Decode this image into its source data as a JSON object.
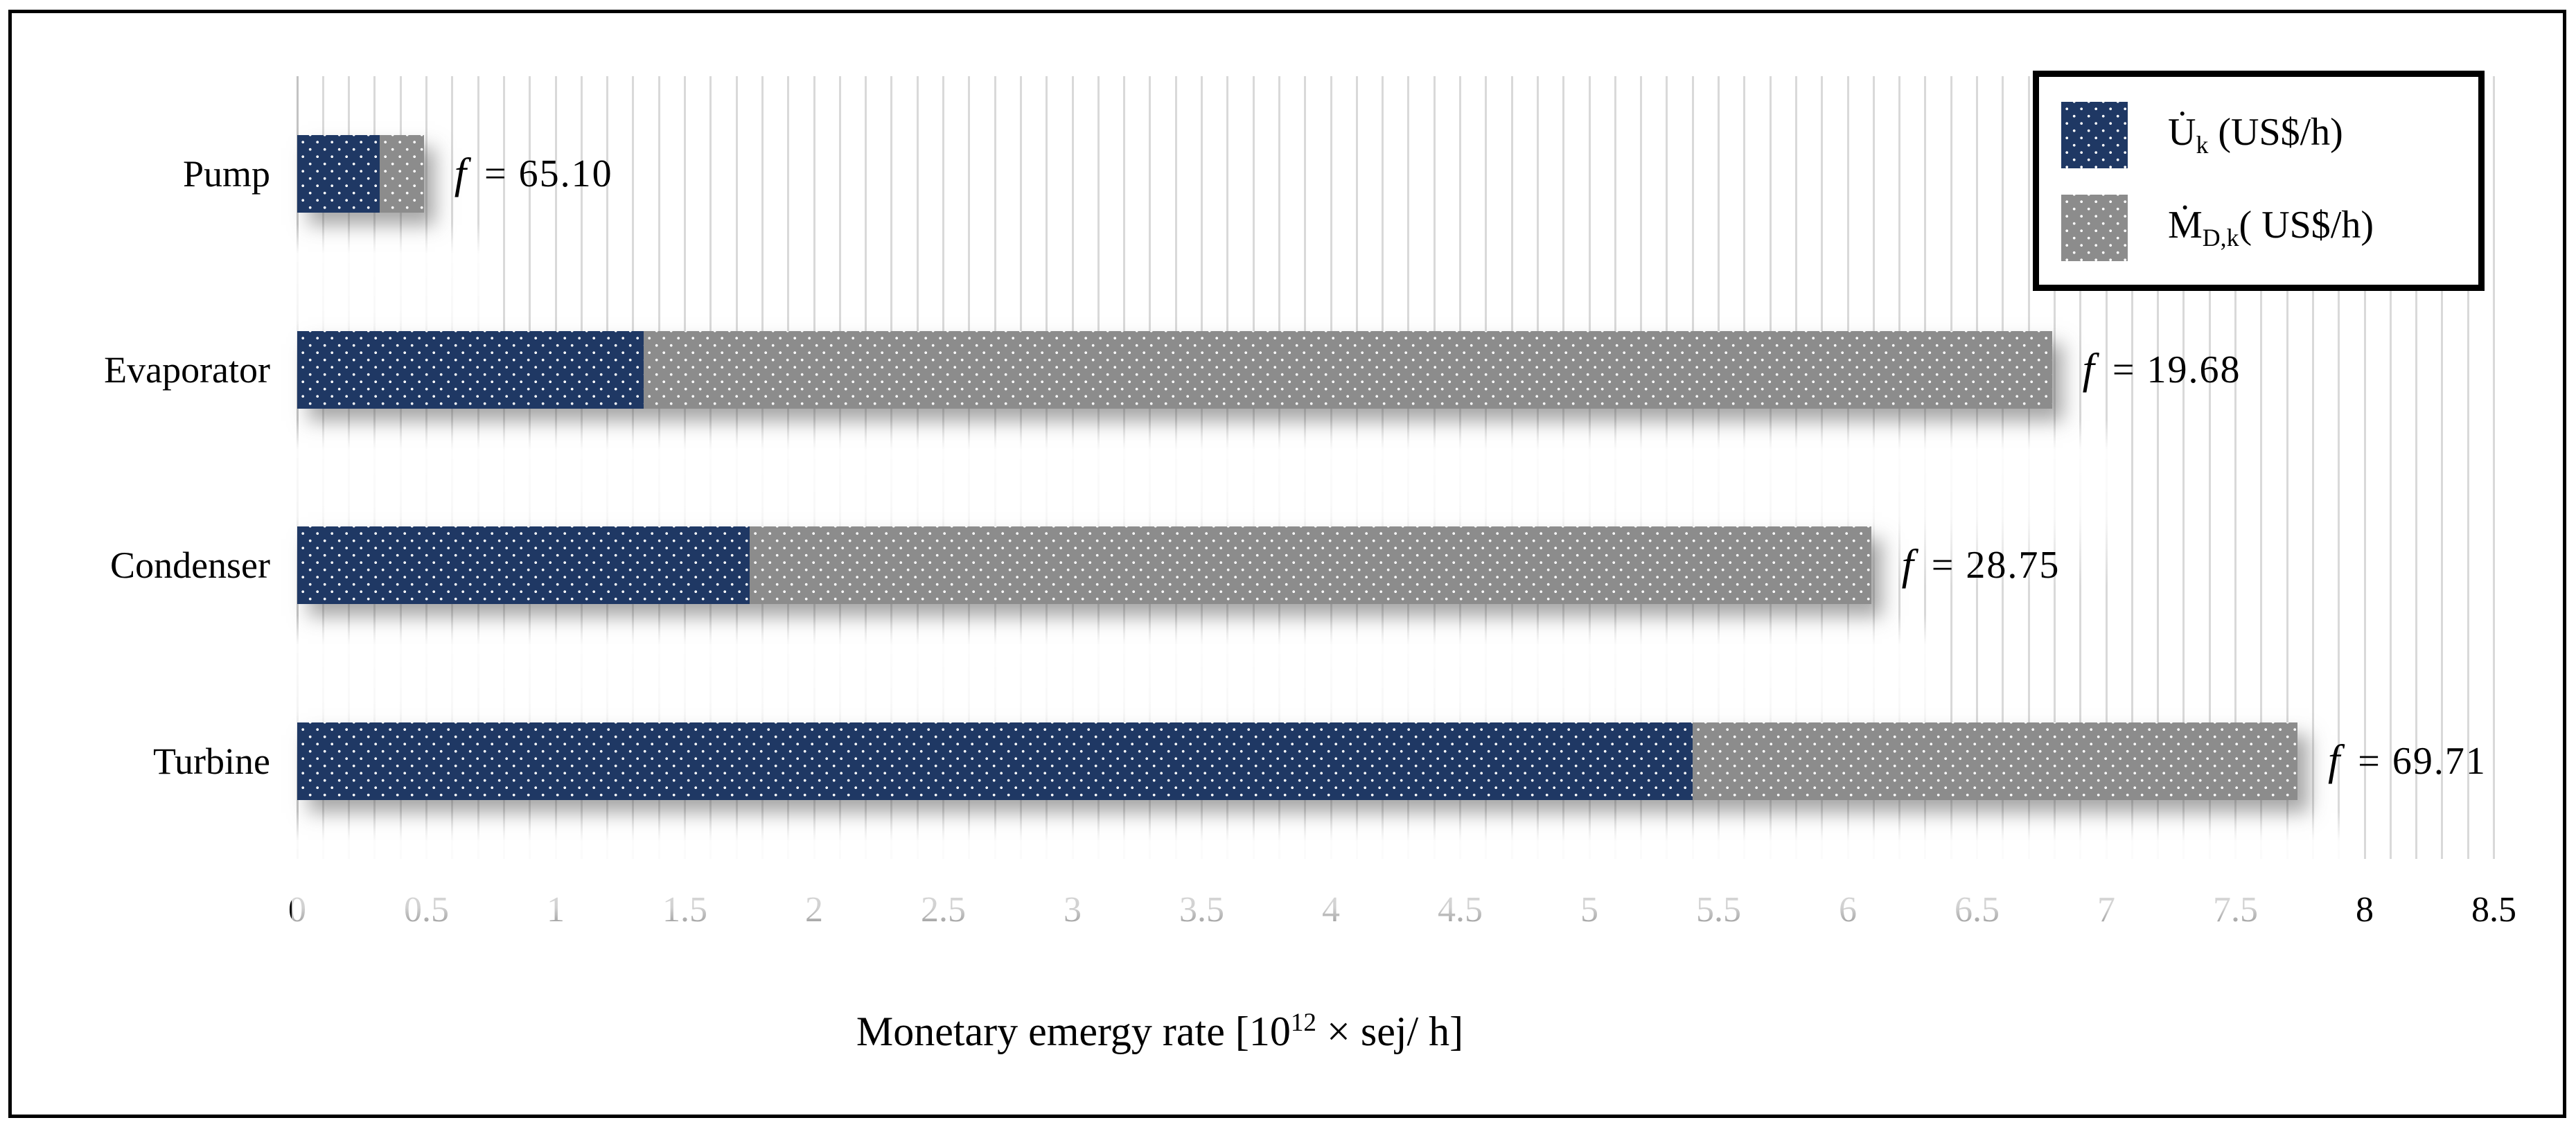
{
  "chart_data": {
    "type": "bar",
    "orientation": "horizontal",
    "stacked": true,
    "categories": [
      "Pump",
      "Evaporator",
      "Condenser",
      "Turbine"
    ],
    "series": [
      {
        "name": "U̇k (US$/h)",
        "color": "#1f3864",
        "values": [
          0.32,
          1.34,
          1.75,
          5.4
        ]
      },
      {
        "name": "ṀD,k( US$/h)",
        "color": "#8c8c8c",
        "values": [
          0.17,
          5.45,
          4.34,
          2.34
        ]
      }
    ],
    "totals": [
      0.49,
      6.79,
      6.09,
      7.74
    ],
    "annotations": [
      {
        "symbol": "f",
        "text": "= 65.10"
      },
      {
        "symbol": "f",
        "text": "= 19.68"
      },
      {
        "symbol": "f",
        "text": "= 28.75"
      },
      {
        "symbol": "f",
        "text": "= 69.71"
      }
    ],
    "xlabel": "Monetary emergy rate [10¹² × sej/ h]",
    "xlabel_parts": {
      "pre": "Monetary emergy rate [10",
      "sup": "12",
      "post": " × sej/ h]"
    },
    "xlim": [
      0,
      8.5
    ],
    "xticks": [
      "0",
      "0.5",
      "1",
      "1.5",
      "2",
      "2.5",
      "3",
      "3.5",
      "4",
      "4.5",
      "5",
      "5.5",
      "6",
      "6.5",
      "7",
      "7.5",
      "8",
      "8.5"
    ],
    "xtick_step": 0.5,
    "minor_grid_step": 0.1,
    "grid": true,
    "legend_position": "top-right"
  },
  "legend": {
    "items": [
      {
        "head": "U̇",
        "sub": "k",
        "tail": " (US$/h)",
        "color": "#1f3864"
      },
      {
        "head": "Ṁ",
        "sub": "D,k",
        "tail": "( US$/h)",
        "color": "#8c8c8c"
      }
    ]
  },
  "colors": {
    "bar_blue": "#1f3864",
    "bar_gray": "#8c8c8c",
    "gridline": "#d9d9d9",
    "axis_line": "#c3c3c3",
    "frame_border": "#000000",
    "background": "#ffffff",
    "text": "#000000"
  }
}
